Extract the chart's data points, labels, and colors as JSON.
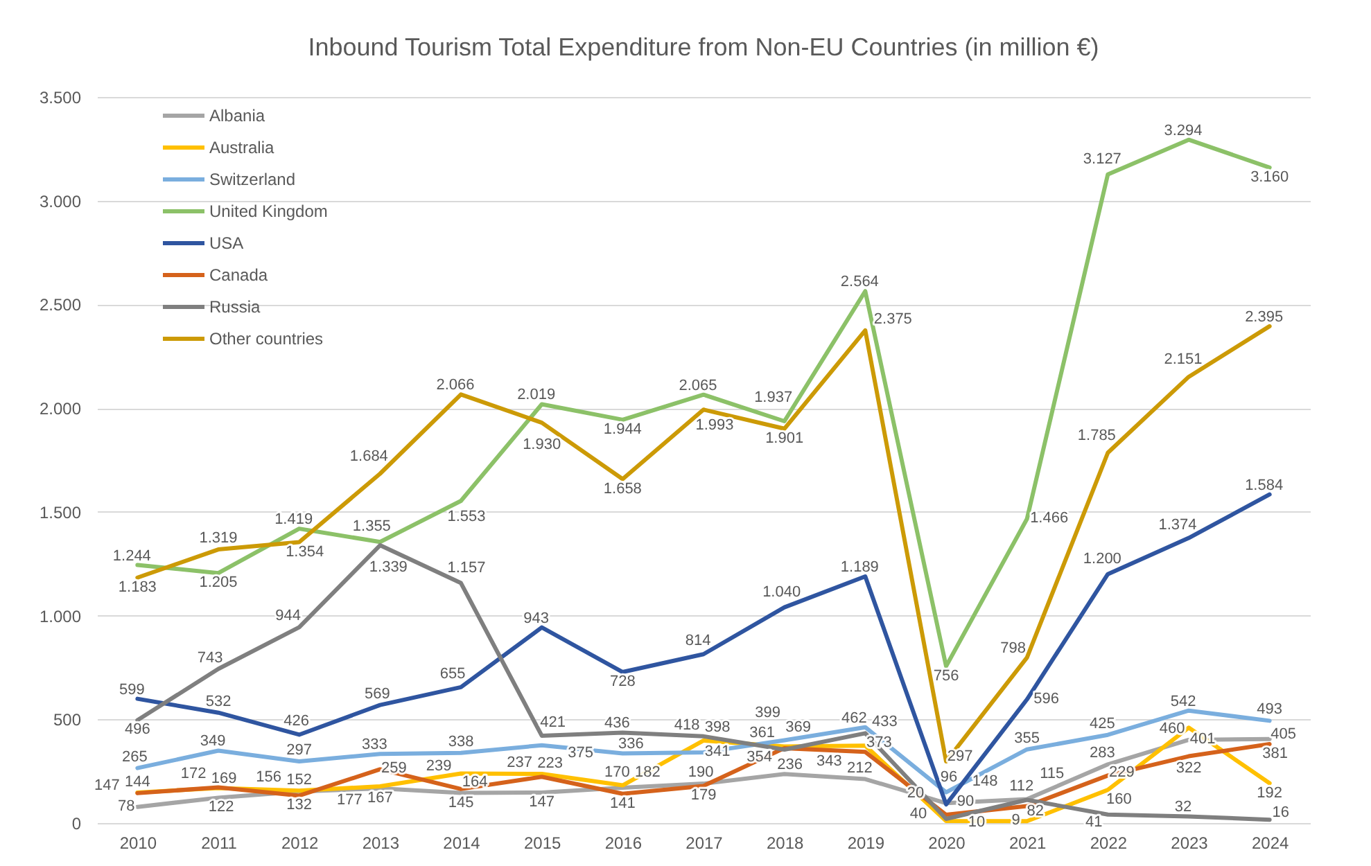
{
  "chart_data": {
    "type": "line",
    "title": "Inbound Tourism Total Expenditure from Non-EU Countries (in million €)",
    "categories": [
      "2010",
      "2011",
      "2012",
      "2013",
      "2014",
      "2015",
      "2016",
      "2017",
      "2018",
      "2019",
      "2020",
      "2021",
      "2022",
      "2023",
      "2024"
    ],
    "series": [
      {
        "name": "Albania",
        "color": "#a5a5a5",
        "values": [
          78,
          122,
          152,
          167,
          145,
          147,
          170,
          190,
          236,
          212,
          96,
          115,
          283,
          401,
          405
        ],
        "value_labels": [
          "78",
          "122",
          "152",
          "167",
          "145",
          "147",
          "170",
          "190",
          "236",
          "212",
          "96",
          "115",
          "283",
          "401",
          "405"
        ]
      },
      {
        "name": "Australia",
        "color": "#ffc000",
        "values": [
          147,
          169,
          156,
          177,
          239,
          237,
          182,
          398,
          369,
          373,
          10,
          9,
          160,
          460,
          192
        ],
        "value_labels": [
          "147",
          "169",
          "156",
          "177",
          "239",
          "237",
          "182",
          "398",
          "369",
          "373",
          "10",
          "9",
          "160",
          "460",
          "192"
        ]
      },
      {
        "name": "Switzerland",
        "color": "#7aaede",
        "values": [
          265,
          349,
          297,
          333,
          338,
          375,
          336,
          341,
          399,
          462,
          148,
          355,
          425,
          542,
          493
        ],
        "value_labels": [
          "265",
          "349",
          "297",
          "333",
          "338",
          "375",
          "336",
          "341",
          "399",
          "462",
          "148",
          "355",
          "425",
          "542",
          "493"
        ]
      },
      {
        "name": "United Kingdom",
        "color": "#8cc168",
        "values": [
          1244,
          1205,
          1419,
          1355,
          1553,
          2019,
          1944,
          2065,
          1937,
          2564,
          756,
          1466,
          3127,
          3294,
          3160
        ],
        "value_labels": [
          "1.244",
          "1.205",
          "1.419",
          "1.355",
          "1.553",
          "2.019",
          "1.944",
          "2.065",
          "1.937",
          "2.564",
          "756",
          "1.466",
          "3.127",
          "3.294",
          "3.160"
        ]
      },
      {
        "name": "USA",
        "color": "#2f55a0",
        "values": [
          599,
          532,
          426,
          569,
          655,
          943,
          728,
          814,
          1040,
          1189,
          90,
          596,
          1200,
          1374,
          1584
        ],
        "value_labels": [
          "599",
          "532",
          "426",
          "569",
          "655",
          "943",
          "728",
          "814",
          "1.040",
          "1.189",
          "90",
          "596",
          "1.200",
          "1.374",
          "1.584"
        ]
      },
      {
        "name": "Canada",
        "color": "#d5621b",
        "values": [
          144,
          172,
          132,
          259,
          164,
          223,
          141,
          179,
          361,
          343,
          40,
          82,
          229,
          322,
          381
        ],
        "value_labels": [
          "144",
          "172",
          "132",
          "259",
          "164",
          "223",
          "141",
          "179",
          "361",
          "343",
          "40",
          "82",
          "229",
          "322",
          "381"
        ]
      },
      {
        "name": "Russia",
        "color": "#7f7f7f",
        "values": [
          496,
          743,
          944,
          1339,
          1157,
          421,
          436,
          418,
          354,
          433,
          20,
          112,
          41,
          32,
          16
        ],
        "value_labels": [
          "496",
          "743",
          "944",
          "1.339",
          "1.157",
          "421",
          "436",
          "418",
          "354",
          "433",
          "20",
          "112",
          "41",
          "32",
          "16"
        ]
      },
      {
        "name": "Other countries",
        "color": "#cc9a06",
        "values": [
          1183,
          1319,
          1354,
          1684,
          2066,
          1930,
          1658,
          1993,
          1901,
          2375,
          297,
          798,
          1785,
          2151,
          2395
        ],
        "value_labels": [
          "1.183",
          "1.319",
          "1.354",
          "1.684",
          "2.066",
          "1.930",
          "1.658",
          "1.993",
          "1.901",
          "2.375",
          "297",
          "798",
          "1.785",
          "2.151",
          "2.395"
        ]
      }
    ],
    "ylim": [
      0,
      3500
    ],
    "yticks": [
      0,
      500,
      {
        "value": 1000,
        "label": "1.000"
      },
      {
        "value": 1500,
        "label": "1.500"
      },
      {
        "value": 2000,
        "label": "2.000"
      },
      {
        "value": 2500,
        "label": "2.500"
      },
      {
        "value": 3000,
        "label": "3.000"
      },
      {
        "value": 3500,
        "label": "3.500"
      }
    ],
    "grid": "y",
    "legend": "top left"
  }
}
